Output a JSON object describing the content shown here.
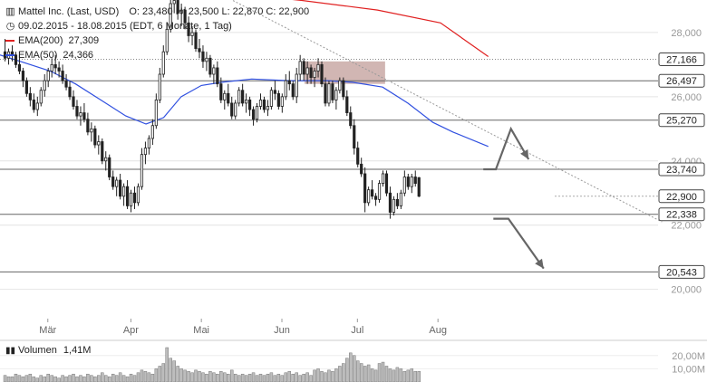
{
  "header": {
    "instrument": "Mattel Inc. (Last, USD)",
    "ohlc": "O: 23,480  H: 23,500  L: 22,870  C: 22,900",
    "range": "09.02.2015 - 18.08.2015 (EDT, 6 Monate, 1 Tag)"
  },
  "legend": [
    {
      "name": "EMA(200)",
      "value": "27,309",
      "color": "#e02020"
    },
    {
      "name": "EMA(50)",
      "value": "24,366",
      "color": "#3050e0"
    }
  ],
  "volume": {
    "label": "Volumen",
    "value": "1,41M"
  },
  "chart_data": {
    "type": "candlestick",
    "months": [
      {
        "label": "Mär",
        "day": 19
      },
      {
        "label": "Apr",
        "day": 52
      },
      {
        "label": "Mai",
        "day": 80
      },
      {
        "label": "Jun",
        "day": 112
      },
      {
        "label": "Jul",
        "day": 142
      },
      {
        "label": "Aug",
        "day": 174
      }
    ],
    "y_ticks": [
      "28,000",
      "26,000",
      "24,000",
      "22,000",
      "20,000"
    ],
    "y_tick_values": [
      28,
      26,
      24,
      22,
      20
    ],
    "ylim": [
      19.2,
      28.9
    ],
    "xlim": [
      0,
      260
    ],
    "levels": [
      {
        "label": "27,166",
        "value": 27.166,
        "style": "dotted"
      },
      {
        "label": "26,497",
        "value": 26.497,
        "style": "solid"
      },
      {
        "label": "25,270",
        "value": 25.27,
        "style": "solid"
      },
      {
        "label": "23,740",
        "value": 23.74,
        "style": "solid"
      },
      {
        "label": "22,900",
        "value": 22.9,
        "style": "current"
      },
      {
        "label": "22,338",
        "value": 22.338,
        "style": "solid"
      },
      {
        "label": "20,543",
        "value": 20.543,
        "style": "solid"
      }
    ],
    "volume_ticks": [
      "20,00M",
      "10,00M"
    ],
    "volume_tick_values": [
      20,
      10
    ],
    "volume_max": 26,
    "resistance_zone": {
      "x": [
        121,
        153
      ],
      "y": [
        26.4,
        27.1
      ]
    },
    "trendline": [
      [
        90,
        29.1
      ],
      [
        263,
        22.1
      ]
    ],
    "ema200": [
      [
        95,
        29.2
      ],
      [
        120,
        29.0
      ],
      [
        150,
        28.7
      ],
      [
        175,
        28.3
      ],
      [
        194,
        27.25
      ]
    ],
    "ema50": [
      [
        0,
        27.3
      ],
      [
        10,
        27.05
      ],
      [
        20,
        26.8
      ],
      [
        30,
        26.4
      ],
      [
        40,
        25.9
      ],
      [
        50,
        25.4
      ],
      [
        58,
        25.15
      ],
      [
        65,
        25.35
      ],
      [
        72,
        26.0
      ],
      [
        80,
        26.35
      ],
      [
        88,
        26.45
      ],
      [
        100,
        26.55
      ],
      [
        115,
        26.5
      ],
      [
        130,
        26.5
      ],
      [
        140,
        26.45
      ],
      [
        152,
        26.3
      ],
      [
        162,
        25.8
      ],
      [
        172,
        25.2
      ],
      [
        180,
        24.9
      ],
      [
        194,
        24.45
      ]
    ],
    "projection_up": [
      [
        192,
        23.74
      ],
      [
        197,
        23.74
      ],
      [
        203,
        25.0
      ],
      [
        210,
        24.05
      ]
    ],
    "projection_down": [
      [
        196,
        22.2
      ],
      [
        202,
        22.2
      ],
      [
        216,
        20.65
      ]
    ],
    "candles": [
      [
        27.4,
        27.8,
        27.1,
        27.2
      ],
      [
        27.2,
        27.5,
        27.0,
        27.4
      ],
      [
        27.4,
        27.6,
        27.1,
        27.3
      ],
      [
        27.3,
        27.4,
        26.9,
        27.0
      ],
      [
        27.0,
        27.3,
        26.7,
        26.8
      ],
      [
        26.8,
        26.9,
        26.3,
        26.5
      ],
      [
        26.5,
        26.6,
        26.0,
        26.1
      ],
      [
        26.1,
        26.3,
        25.7,
        25.9
      ],
      [
        25.9,
        26.1,
        25.5,
        25.6
      ],
      [
        25.6,
        26.0,
        25.4,
        25.8
      ],
      [
        25.8,
        26.3,
        25.7,
        26.2
      ],
      [
        26.2,
        26.7,
        26.0,
        26.5
      ],
      [
        26.5,
        26.9,
        26.3,
        26.8
      ],
      [
        26.8,
        27.2,
        26.6,
        27.0
      ],
      [
        27.0,
        27.3,
        26.7,
        26.9
      ],
      [
        26.9,
        27.1,
        26.6,
        26.8
      ],
      [
        26.8,
        27.0,
        26.4,
        26.5
      ],
      [
        26.5,
        26.7,
        26.2,
        26.3
      ],
      [
        26.3,
        26.5,
        25.9,
        26.0
      ],
      [
        26.0,
        26.2,
        25.6,
        25.7
      ],
      [
        25.7,
        25.9,
        25.3,
        25.4
      ],
      [
        25.4,
        25.7,
        25.1,
        25.5
      ],
      [
        25.5,
        25.8,
        25.2,
        25.3
      ],
      [
        25.3,
        25.5,
        24.8,
        24.9
      ],
      [
        24.9,
        25.2,
        24.6,
        25.0
      ],
      [
        25.0,
        25.1,
        24.4,
        24.5
      ],
      [
        24.5,
        24.8,
        24.2,
        24.6
      ],
      [
        24.6,
        24.7,
        23.9,
        24.0
      ],
      [
        24.0,
        24.3,
        23.7,
        24.1
      ],
      [
        24.1,
        24.2,
        23.4,
        23.5
      ],
      [
        23.5,
        23.7,
        23.1,
        23.2
      ],
      [
        23.2,
        23.5,
        22.9,
        23.4
      ],
      [
        23.4,
        23.6,
        22.8,
        22.9
      ],
      [
        22.9,
        23.3,
        22.6,
        23.2
      ],
      [
        23.2,
        23.4,
        22.5,
        22.6
      ],
      [
        22.6,
        23.1,
        22.4,
        23.0
      ],
      [
        23.0,
        23.2,
        22.5,
        22.7
      ],
      [
        22.7,
        23.3,
        22.6,
        23.2
      ],
      [
        23.2,
        24.4,
        23.1,
        24.2
      ],
      [
        24.2,
        24.6,
        23.9,
        24.4
      ],
      [
        24.4,
        24.8,
        24.2,
        24.7
      ],
      [
        24.7,
        25.3,
        24.5,
        25.1
      ],
      [
        25.1,
        26.1,
        25.0,
        25.9
      ],
      [
        25.9,
        26.9,
        25.8,
        26.7
      ],
      [
        26.7,
        27.6,
        26.6,
        27.4
      ],
      [
        27.4,
        28.3,
        27.3,
        28.1
      ],
      [
        28.1,
        29.2,
        28.0,
        28.9
      ],
      [
        28.9,
        29.3,
        28.6,
        29.0
      ],
      [
        29.0,
        29.1,
        28.4,
        28.6
      ],
      [
        28.6,
        28.9,
        28.2,
        28.7
      ],
      [
        28.7,
        28.8,
        28.1,
        28.3
      ],
      [
        28.3,
        28.5,
        27.7,
        27.9
      ],
      [
        27.9,
        28.2,
        27.6,
        28.0
      ],
      [
        28.0,
        28.1,
        27.4,
        27.5
      ],
      [
        27.5,
        27.8,
        27.2,
        27.4
      ],
      [
        27.4,
        27.6,
        26.9,
        27.1
      ],
      [
        27.1,
        27.4,
        26.8,
        27.2
      ],
      [
        27.2,
        27.3,
        26.6,
        26.7
      ],
      [
        26.7,
        27.0,
        26.4,
        26.9
      ],
      [
        26.9,
        27.1,
        26.3,
        26.4
      ],
      [
        26.4,
        26.6,
        25.8,
        25.9
      ],
      [
        25.9,
        26.2,
        25.6,
        26.1
      ],
      [
        26.1,
        26.4,
        25.7,
        25.8
      ],
      [
        25.8,
        26.0,
        25.3,
        25.4
      ],
      [
        25.4,
        25.9,
        25.3,
        25.8
      ],
      [
        25.8,
        26.3,
        25.7,
        26.2
      ],
      [
        26.2,
        26.4,
        25.7,
        25.8
      ],
      [
        25.8,
        26.1,
        25.5,
        25.9
      ],
      [
        25.9,
        26.0,
        25.4,
        25.6
      ],
      [
        25.6,
        25.7,
        25.1,
        25.3
      ],
      [
        25.3,
        25.8,
        25.2,
        25.7
      ],
      [
        25.7,
        26.1,
        25.6,
        25.9
      ],
      [
        25.9,
        26.0,
        25.5,
        25.6
      ],
      [
        25.6,
        25.9,
        25.4,
        25.7
      ],
      [
        25.7,
        26.3,
        25.6,
        26.2
      ],
      [
        26.2,
        26.5,
        25.9,
        26.1
      ],
      [
        26.1,
        26.2,
        25.6,
        25.7
      ],
      [
        25.7,
        26.1,
        25.5,
        26.0
      ],
      [
        26.0,
        26.7,
        25.9,
        26.5
      ],
      [
        26.5,
        26.8,
        26.2,
        26.4
      ],
      [
        26.4,
        26.5,
        25.9,
        26.0
      ],
      [
        26.0,
        26.9,
        25.8,
        26.7
      ],
      [
        26.7,
        27.3,
        26.5,
        27.1
      ],
      [
        27.1,
        27.2,
        26.5,
        26.7
      ],
      [
        26.7,
        27.1,
        26.4,
        26.9
      ],
      [
        26.9,
        27.0,
        26.4,
        26.6
      ],
      [
        26.6,
        26.9,
        26.3,
        26.8
      ],
      [
        26.8,
        27.2,
        26.6,
        27.0
      ],
      [
        27.0,
        27.1,
        26.3,
        26.4
      ],
      [
        26.4,
        26.6,
        25.7,
        25.8
      ],
      [
        25.8,
        26.5,
        25.7,
        26.4
      ],
      [
        26.4,
        26.5,
        25.8,
        25.9
      ],
      [
        25.9,
        26.3,
        25.6,
        26.2
      ],
      [
        26.2,
        26.6,
        26.1,
        26.5
      ],
      [
        26.5,
        26.6,
        25.9,
        26.0
      ],
      [
        26.0,
        26.2,
        25.4,
        25.5
      ],
      [
        25.5,
        25.7,
        25.0,
        25.1
      ],
      [
        25.1,
        25.3,
        24.2,
        24.4
      ],
      [
        24.4,
        24.6,
        23.8,
        23.9
      ],
      [
        23.9,
        24.1,
        23.5,
        23.6
      ],
      [
        23.6,
        23.8,
        22.4,
        22.7
      ],
      [
        22.7,
        23.2,
        22.6,
        23.1
      ],
      [
        23.1,
        23.4,
        22.8,
        22.9
      ],
      [
        22.9,
        23.0,
        22.6,
        22.8
      ],
      [
        22.8,
        23.4,
        22.7,
        23.3
      ],
      [
        23.3,
        23.7,
        23.2,
        23.6
      ],
      [
        23.6,
        23.7,
        22.9,
        23.0
      ],
      [
        23.0,
        23.2,
        22.2,
        22.4
      ],
      [
        22.4,
        22.9,
        22.3,
        22.8
      ],
      [
        22.8,
        23.0,
        22.5,
        22.6
      ],
      [
        22.6,
        23.1,
        22.5,
        23.0
      ],
      [
        23.0,
        23.7,
        22.9,
        23.5
      ],
      [
        23.5,
        23.6,
        23.1,
        23.2
      ],
      [
        23.2,
        23.6,
        23.0,
        23.5
      ],
      [
        23.5,
        23.7,
        23.2,
        23.3
      ],
      [
        23.48,
        23.5,
        22.87,
        22.9
      ]
    ],
    "volumes": [
      5,
      4,
      4,
      6,
      5,
      4,
      5,
      6,
      4,
      3,
      5,
      4,
      6,
      5,
      4,
      3,
      5,
      4,
      5,
      6,
      4,
      5,
      4,
      6,
      5,
      4,
      5,
      7,
      5,
      4,
      6,
      5,
      7,
      5,
      4,
      6,
      5,
      7,
      9,
      8,
      7,
      6,
      10,
      12,
      14,
      26,
      18,
      16,
      12,
      10,
      9,
      8,
      7,
      9,
      8,
      7,
      6,
      8,
      7,
      6,
      8,
      7,
      6,
      9,
      6,
      5,
      6,
      5,
      6,
      7,
      5,
      6,
      5,
      6,
      7,
      5,
      6,
      5,
      7,
      8,
      6,
      7,
      5,
      6,
      7,
      5,
      9,
      10,
      8,
      7,
      9,
      8,
      10,
      12,
      14,
      18,
      22,
      20,
      16,
      14,
      12,
      13,
      10,
      9,
      14,
      15,
      12,
      10,
      9,
      11,
      10,
      8,
      9,
      10,
      8,
      8
    ]
  }
}
